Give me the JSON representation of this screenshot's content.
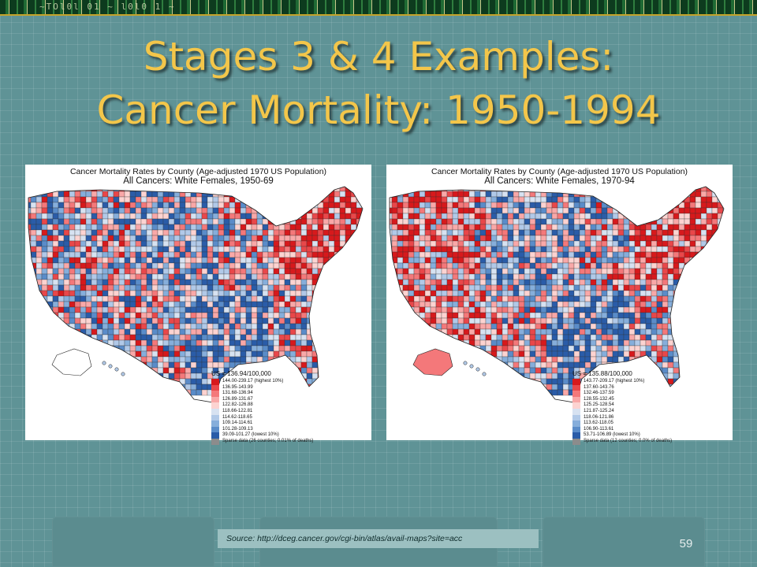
{
  "banner_text": "~TOl0l 01 ~ l0l0 1 ~",
  "title": {
    "line1": "Stages 3 & 4 Examples:",
    "line2": "Cancer Mortality: 1950-1994"
  },
  "maps": [
    {
      "title_line1": "Cancer Mortality Rates by County (Age-adjusted 1970 US Population)",
      "title_line2": "All Cancers:  White Females, 1950-69",
      "legend_title": "US = 136.94/100,000",
      "legend": [
        {
          "label": "144.00-239.17 (highest 10%)",
          "color": "#d7191c"
        },
        {
          "label": "136.95-143.99",
          "color": "#e9474a"
        },
        {
          "label": "131.68-136.94",
          "color": "#f4787a"
        },
        {
          "label": "126.89-131.67",
          "color": "#f9a8a8"
        },
        {
          "label": "122.82-126.88",
          "color": "#fcd3d1"
        },
        {
          "label": "118.66-122.81",
          "color": "#d7e2f1"
        },
        {
          "label": "114.62-118.65",
          "color": "#b1c9e8"
        },
        {
          "label": "109.14-114.61",
          "color": "#86aedb"
        },
        {
          "label": "101.28-109.13",
          "color": "#5a8cc9"
        },
        {
          "label": "39.09-101.27 (lowest 10%)",
          "color": "#2a5ca8"
        },
        {
          "label": "Sparse data (26 counties; 0.01% of deaths)",
          "color": "#8c8c8c"
        }
      ]
    },
    {
      "title_line1": "Cancer Mortality Rates by County (Age-adjusted 1970 US Population)",
      "title_line2": "All Cancers:  White Females, 1970-94",
      "legend_title": "US = 135.88/100,000",
      "legend": [
        {
          "label": "143.77-209.17 (highest 10%)",
          "color": "#d7191c"
        },
        {
          "label": "137.60-143.76",
          "color": "#e9474a"
        },
        {
          "label": "132.46-137.59",
          "color": "#f4787a"
        },
        {
          "label": "128.55-132.45",
          "color": "#f9a8a8"
        },
        {
          "label": "125.25-128.54",
          "color": "#fcd3d1"
        },
        {
          "label": "121.87-125.24",
          "color": "#d7e2f1"
        },
        {
          "label": "118.06-121.86",
          "color": "#b1c9e8"
        },
        {
          "label": "113.62-118.05",
          "color": "#86aedb"
        },
        {
          "label": "106.90-113.61",
          "color": "#5a8cc9"
        },
        {
          "label": "53.71-106.89 (lowest 10%)",
          "color": "#2a5ca8"
        },
        {
          "label": "Sparse data (12 counties; 0.0% of deaths)",
          "color": "#8c8c8c"
        }
      ]
    }
  ],
  "source": "Source:  http://dceg.cancer.gov/cgi-bin/atlas/avail-maps?site=acc",
  "page_number": "59",
  "colors": {
    "background": "#5f9396",
    "title": "#f3c64a",
    "source_box": "#9cc0c1"
  }
}
